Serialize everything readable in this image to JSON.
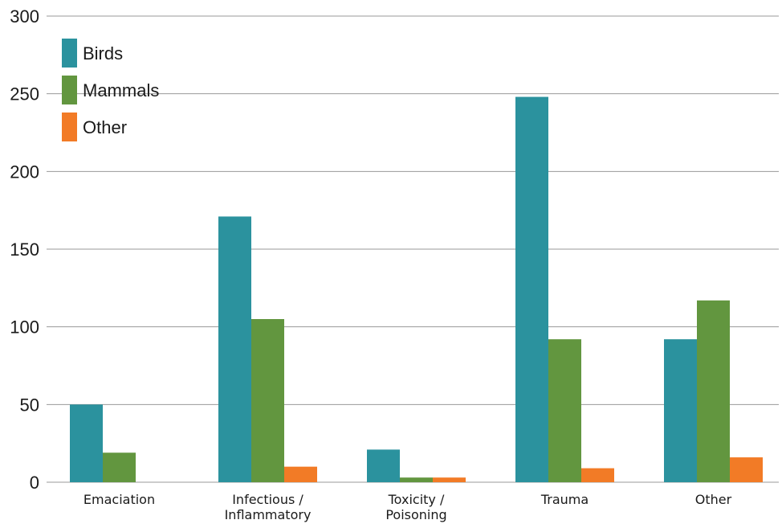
{
  "chart_data": {
    "type": "bar",
    "categories": [
      [
        "Emaciation"
      ],
      [
        "Infectious /",
        "Inflammatory"
      ],
      [
        "Toxicity /",
        "Poisoning"
      ],
      [
        "Trauma"
      ],
      [
        "Other"
      ]
    ],
    "series": [
      {
        "name": "Birds",
        "color": "#2b929e",
        "values": [
          50,
          171,
          21,
          248,
          92
        ]
      },
      {
        "name": "Mammals",
        "color": "#62963f",
        "values": [
          19,
          105,
          3,
          92,
          117
        ]
      },
      {
        "name": "Other",
        "color": "#f27b26",
        "values": [
          0,
          10,
          3,
          9,
          16
        ]
      }
    ],
    "title": "",
    "xlabel": "",
    "ylabel": "",
    "ylim": [
      0,
      300
    ],
    "yticks": [
      0,
      50,
      100,
      150,
      200,
      250,
      300
    ],
    "grid": true,
    "legend_position": "top-left"
  }
}
